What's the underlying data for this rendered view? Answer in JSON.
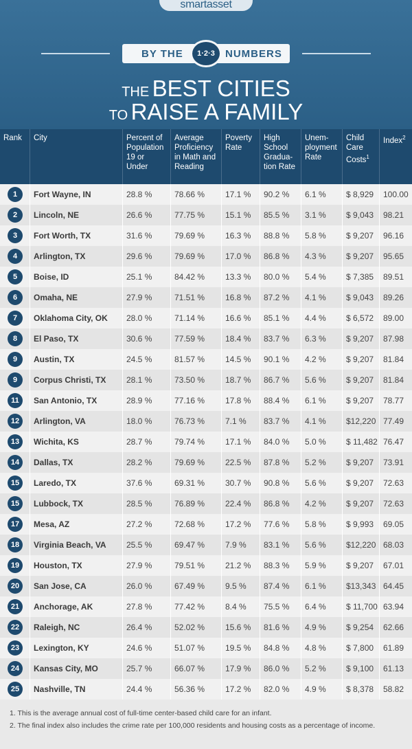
{
  "header": {
    "logo": "smartasset",
    "banner_left": "BY THE",
    "banner_badge": "1·2·3",
    "banner_right": "NUMBERS",
    "title": [
      {
        "small": "THE",
        "large": "BEST CITIES"
      },
      {
        "small": "TO",
        "large": "RAISE A FAMILY"
      }
    ]
  },
  "table": {
    "columns": [
      "Rank",
      "City",
      "Percent of Population 19 or Under",
      "Average Proficiency in Math and Reading",
      "Poverty Rate",
      "High School Gradua-tion Rate",
      "Unem-ployment Rate",
      "Child Care Costs",
      "Index"
    ],
    "column_notes": {
      "7": "1",
      "8": "2"
    },
    "rows": [
      [
        "1",
        "Fort Wayne, IN",
        "28.8 %",
        "78.66 %",
        "17.1 %",
        "90.2 %",
        "6.1 %",
        "$ 8,929",
        "100.00"
      ],
      [
        "2",
        "Lincoln, NE",
        "26.6 %",
        "77.75 %",
        "15.1 %",
        "85.5 %",
        "3.1 %",
        "$ 9,043",
        "98.21"
      ],
      [
        "3",
        "Fort Worth, TX",
        "31.6 %",
        "79.69 %",
        "16.3 %",
        "88.8 %",
        "5.8 %",
        "$ 9,207",
        "96.16"
      ],
      [
        "4",
        "Arlington, TX",
        "29.6 %",
        "79.69 %",
        "17.0 %",
        "86.8 %",
        "4.3 %",
        "$ 9,207",
        "95.65"
      ],
      [
        "5",
        "Boise, ID",
        "25.1 %",
        "84.42 %",
        "13.3 %",
        "80.0 %",
        "5.4 %",
        "$ 7,385",
        "89.51"
      ],
      [
        "6",
        "Omaha, NE",
        "27.9 %",
        "71.51 %",
        "16.8 %",
        "87.2 %",
        "4.1 %",
        "$ 9,043",
        "89.26"
      ],
      [
        "7",
        "Oklahoma City, OK",
        "28.0 %",
        "71.14 %",
        "16.6 %",
        "85.1 %",
        "4.4 %",
        "$ 6,572",
        "89.00"
      ],
      [
        "8",
        "El Paso, TX",
        "30.6 %",
        "77.59 %",
        "18.4 %",
        "83.7 %",
        "6.3 %",
        "$ 9,207",
        "87.98"
      ],
      [
        "9",
        "Austin, TX",
        "24.5 %",
        "81.57 %",
        "14.5 %",
        "90.1 %",
        "4.2 %",
        "$ 9,207",
        "81.84"
      ],
      [
        "9",
        "Corpus Christi, TX",
        "28.1 %",
        "73.50 %",
        "18.7 %",
        "86.7 %",
        "5.6 %",
        "$ 9,207",
        "81.84"
      ],
      [
        "11",
        "San Antonio, TX",
        "28.9 %",
        "77.16 %",
        "17.8 %",
        "88.4 %",
        "6.1 %",
        "$ 9,207",
        "78.77"
      ],
      [
        "12",
        "Arlington, VA",
        "18.0 %",
        "76.73 %",
        "7.1 %",
        "83.7 %",
        "4.1 %",
        "$12,220",
        "77.49"
      ],
      [
        "13",
        "Wichita, KS",
        "28.7 %",
        "79.74 %",
        "17.1 %",
        "84.0 %",
        "5.0 %",
        "$ 11,482",
        "76.47"
      ],
      [
        "14",
        "Dallas, TX",
        "28.2 %",
        "79.69 %",
        "22.5 %",
        "87.8 %",
        "5.2 %",
        "$ 9,207",
        "73.91"
      ],
      [
        "15",
        "Laredo, TX",
        "37.6 %",
        "69.31 %",
        "30.7 %",
        "90.8 %",
        "5.6 %",
        "$ 9,207",
        "72.63"
      ],
      [
        "15",
        "Lubbock, TX",
        "28.5 %",
        "76.89 %",
        "22.4 %",
        "86.8 %",
        "4.2 %",
        "$ 9,207",
        "72.63"
      ],
      [
        "17",
        "Mesa, AZ",
        "27.2 %",
        "72.68 %",
        "17.2 %",
        "77.6 %",
        "5.8 %",
        "$ 9,993",
        "69.05"
      ],
      [
        "18",
        "Virginia Beach, VA",
        "25.5 %",
        "69.47 %",
        "7.9 %",
        "83.1 %",
        "5.6 %",
        "$12,220",
        "68.03"
      ],
      [
        "19",
        "Houston, TX",
        "27.9 %",
        "79.51 %",
        "21.2 %",
        "88.3 %",
        "5.9 %",
        "$ 9,207",
        "67.01"
      ],
      [
        "20",
        "San Jose, CA",
        "26.0 %",
        "67.49 %",
        "9.5 %",
        "87.4 %",
        "6.1 %",
        "$13,343",
        "64.45"
      ],
      [
        "21",
        "Anchorage, AK",
        "27.8 %",
        "77.42 %",
        "8.4 %",
        "75.5 %",
        "6.4 %",
        "$ 11,700",
        "63.94"
      ],
      [
        "22",
        "Raleigh, NC",
        "26.4 %",
        "52.02 %",
        "15.6 %",
        "81.6 %",
        "4.9 %",
        "$ 9,254",
        "62.66"
      ],
      [
        "23",
        "Lexington, KY",
        "24.6 %",
        "51.07 %",
        "19.5 %",
        "84.8 %",
        "4.8 %",
        "$ 7,800",
        "61.89"
      ],
      [
        "24",
        "Kansas City, MO",
        "25.7 %",
        "66.07 %",
        "17.9 %",
        "86.0 %",
        "5.2 %",
        "$ 9,100",
        "61.13"
      ],
      [
        "25",
        "Nashville, TN",
        "24.4 %",
        "56.36 %",
        "17.2 %",
        "82.0 %",
        "4.9 %",
        "$ 8,378",
        "58.82"
      ]
    ]
  },
  "footnotes": [
    "1.  This is the average annual cost of full-time center-based child care for an infant.",
    "2.  The final index also includes the crime rate per 100,000 residents and housing costs as a percentage of income."
  ]
}
